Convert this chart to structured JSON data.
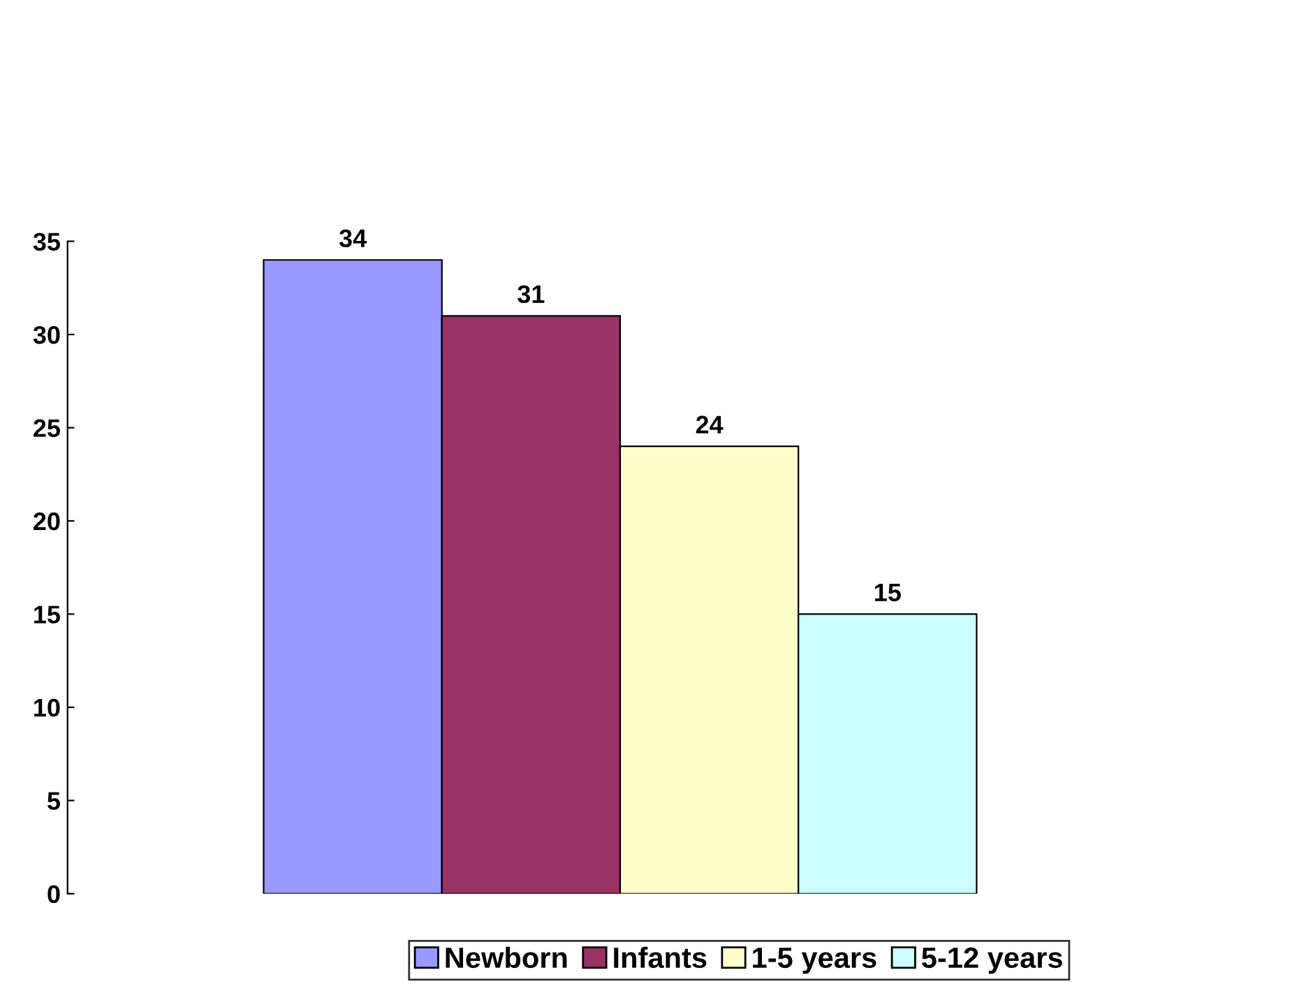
{
  "chart_data": {
    "type": "bar",
    "categories": [
      null
    ],
    "series": [
      {
        "name": "Newborn",
        "color": "#9999ff",
        "values": [
          34
        ]
      },
      {
        "name": "Infants",
        "color": "#993366",
        "values": [
          31
        ]
      },
      {
        "name": "1-5 years",
        "color": "#ffffcc",
        "values": [
          24
        ]
      },
      {
        "name": "5-12 years",
        "color": "#ccffff",
        "values": [
          15
        ]
      }
    ],
    "ylim": [
      0,
      35
    ],
    "yticks": [
      0,
      5,
      10,
      15,
      20,
      25,
      30,
      35
    ],
    "data_labels": true,
    "grid": false,
    "legend": "bottom"
  }
}
